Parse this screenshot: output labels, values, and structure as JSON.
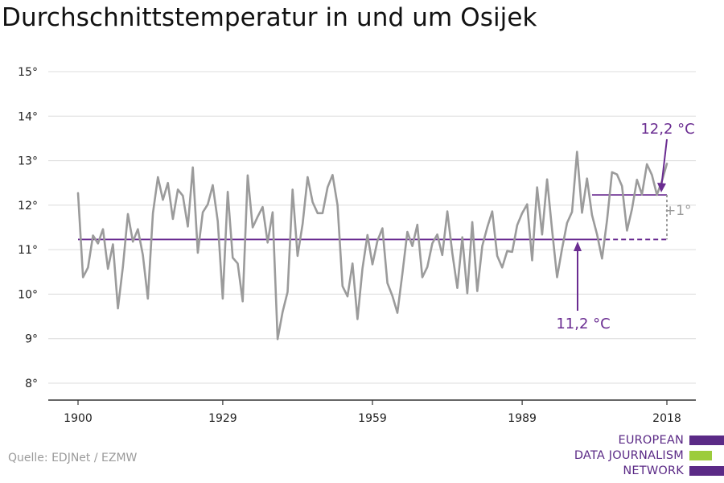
{
  "title": "Durchschnittstemperatur in und um Osijek",
  "source": "Quelle: EDJNet / EZMW",
  "logo": {
    "lines": [
      "EUROPEAN",
      "DATA JOURNALISM",
      "NETWORK"
    ],
    "color": "#5b2a86",
    "bar_colors": [
      "#5b2a86",
      "#9ccc3c",
      "#5b2a86"
    ]
  },
  "colors": {
    "line": "#9b9b9b",
    "accent": "#6a2c91",
    "grid": "#dcdcdc",
    "axis": "#333333"
  },
  "chart_data": {
    "type": "line",
    "title": "Durchschnittstemperatur in und um Osijek",
    "xlim": [
      1900,
      2018
    ],
    "ylim": [
      8,
      15
    ],
    "x_ticks": [
      1900,
      1929,
      1959,
      1989,
      2018
    ],
    "x_tick_labels": [
      "1900",
      "1929",
      "1959",
      "1989",
      "2018"
    ],
    "y_ticks": [
      8,
      9,
      10,
      11,
      12,
      13,
      14,
      15
    ],
    "y_tick_labels": [
      "8°",
      "9°",
      "10°",
      "11°",
      "12°",
      "13°",
      "14°",
      "15°"
    ],
    "grid": "horizontal",
    "x": [
      1900,
      1901,
      1902,
      1903,
      1904,
      1905,
      1906,
      1907,
      1908,
      1909,
      1910,
      1911,
      1912,
      1913,
      1914,
      1915,
      1916,
      1917,
      1918,
      1919,
      1920,
      1921,
      1922,
      1923,
      1924,
      1925,
      1926,
      1927,
      1928,
      1929,
      1930,
      1931,
      1932,
      1933,
      1934,
      1935,
      1936,
      1937,
      1938,
      1939,
      1940,
      1941,
      1942,
      1943,
      1944,
      1945,
      1946,
      1947,
      1948,
      1949,
      1950,
      1951,
      1952,
      1953,
      1954,
      1955,
      1956,
      1957,
      1958,
      1959,
      1960,
      1961,
      1962,
      1963,
      1964,
      1965,
      1966,
      1967,
      1968,
      1969,
      1970,
      1971,
      1972,
      1973,
      1974,
      1975,
      1976,
      1977,
      1978,
      1979,
      1980,
      1981,
      1982,
      1983,
      1984,
      1985,
      1986,
      1987,
      1988,
      1989,
      1990,
      1991,
      1992,
      1993,
      1994,
      1995,
      1996,
      1997,
      1998,
      1999,
      2000,
      2001,
      2002,
      2003,
      2004,
      2005,
      2006,
      2007,
      2008,
      2009,
      2010,
      2011,
      2012,
      2013,
      2014,
      2015,
      2016,
      2017,
      2018
    ],
    "series": [
      {
        "values": [
          12.27,
          10.38,
          10.6,
          11.32,
          11.14,
          11.46,
          10.57,
          11.12,
          9.68,
          10.62,
          11.8,
          11.18,
          11.46,
          10.88,
          9.9,
          11.82,
          12.63,
          12.12,
          12.5,
          11.69,
          12.35,
          12.21,
          11.52,
          12.85,
          10.93,
          11.84,
          12.02,
          12.45,
          11.64,
          9.9,
          12.3,
          10.82,
          10.69,
          9.84,
          12.67,
          11.5,
          11.74,
          11.96,
          11.16,
          11.84,
          8.99,
          9.6,
          10.05,
          12.35,
          10.86,
          11.58,
          12.63,
          12.07,
          11.82,
          11.82,
          12.4,
          12.68,
          12.0,
          10.18,
          9.95,
          10.69,
          9.44,
          10.58,
          11.33,
          10.67,
          11.2,
          11.48,
          10.25,
          9.96,
          9.58,
          10.46,
          11.4,
          11.08,
          11.56,
          10.38,
          10.61,
          11.14,
          11.34,
          10.88,
          11.86,
          10.92,
          10.14,
          11.28,
          10.02,
          11.62,
          10.07,
          11.08,
          11.5,
          11.86,
          10.86,
          10.6,
          10.97,
          10.95,
          11.55,
          11.82,
          12.02,
          10.76,
          12.4,
          11.34,
          12.58,
          11.44,
          10.38,
          11.02,
          11.6,
          11.85,
          13.2,
          11.83,
          12.6,
          11.78,
          11.34,
          10.8,
          11.66,
          12.74,
          12.69,
          12.43,
          11.43,
          11.91,
          12.57,
          12.24,
          12.92,
          12.68,
          12.23,
          12.54,
          12.93
        ]
      }
    ],
    "reference_lines": [
      {
        "label": "11,2 °C",
        "value": 11.23,
        "from": 1900,
        "to": 2004,
        "style": "solid"
      },
      {
        "value": 11.23,
        "from": 2004,
        "to": 2018,
        "style": "dashed"
      },
      {
        "label": "12,2 °C",
        "value": 12.23,
        "from": 2003,
        "to": 2018,
        "style": "solid"
      }
    ],
    "annotations": [
      "11,2 °C",
      "12,2 °C",
      "+1°"
    ]
  }
}
